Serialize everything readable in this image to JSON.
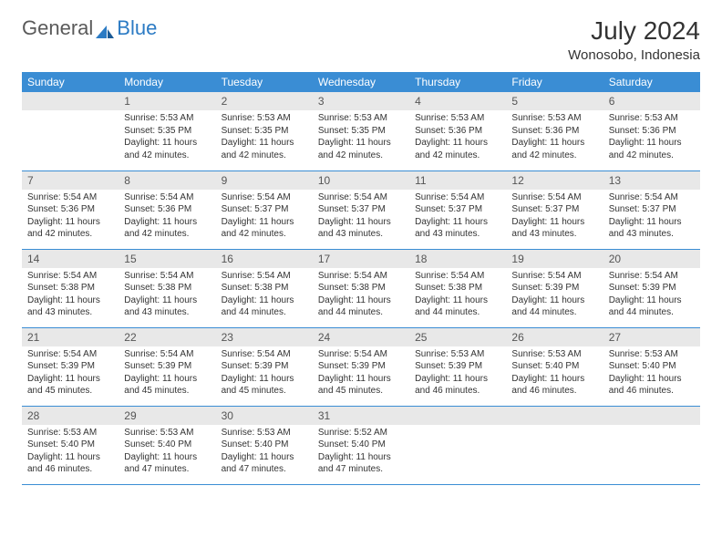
{
  "brand": {
    "part1": "General",
    "part2": "Blue"
  },
  "title": "July 2024",
  "location": "Wonosobo, Indonesia",
  "colors": {
    "header_bg": "#3a8dd4",
    "header_text": "#ffffff",
    "daynum_bg": "#e8e8e8",
    "row_divider": "#3a8dd4",
    "brand_accent": "#2c7bc4"
  },
  "weekdays": [
    "Sunday",
    "Monday",
    "Tuesday",
    "Wednesday",
    "Thursday",
    "Friday",
    "Saturday"
  ],
  "weeks": [
    [
      {
        "n": "",
        "sunrise": "",
        "sunset": "",
        "daylight": ""
      },
      {
        "n": "1",
        "sunrise": "Sunrise: 5:53 AM",
        "sunset": "Sunset: 5:35 PM",
        "daylight": "Daylight: 11 hours and 42 minutes."
      },
      {
        "n": "2",
        "sunrise": "Sunrise: 5:53 AM",
        "sunset": "Sunset: 5:35 PM",
        "daylight": "Daylight: 11 hours and 42 minutes."
      },
      {
        "n": "3",
        "sunrise": "Sunrise: 5:53 AM",
        "sunset": "Sunset: 5:35 PM",
        "daylight": "Daylight: 11 hours and 42 minutes."
      },
      {
        "n": "4",
        "sunrise": "Sunrise: 5:53 AM",
        "sunset": "Sunset: 5:36 PM",
        "daylight": "Daylight: 11 hours and 42 minutes."
      },
      {
        "n": "5",
        "sunrise": "Sunrise: 5:53 AM",
        "sunset": "Sunset: 5:36 PM",
        "daylight": "Daylight: 11 hours and 42 minutes."
      },
      {
        "n": "6",
        "sunrise": "Sunrise: 5:53 AM",
        "sunset": "Sunset: 5:36 PM",
        "daylight": "Daylight: 11 hours and 42 minutes."
      }
    ],
    [
      {
        "n": "7",
        "sunrise": "Sunrise: 5:54 AM",
        "sunset": "Sunset: 5:36 PM",
        "daylight": "Daylight: 11 hours and 42 minutes."
      },
      {
        "n": "8",
        "sunrise": "Sunrise: 5:54 AM",
        "sunset": "Sunset: 5:36 PM",
        "daylight": "Daylight: 11 hours and 42 minutes."
      },
      {
        "n": "9",
        "sunrise": "Sunrise: 5:54 AM",
        "sunset": "Sunset: 5:37 PM",
        "daylight": "Daylight: 11 hours and 42 minutes."
      },
      {
        "n": "10",
        "sunrise": "Sunrise: 5:54 AM",
        "sunset": "Sunset: 5:37 PM",
        "daylight": "Daylight: 11 hours and 43 minutes."
      },
      {
        "n": "11",
        "sunrise": "Sunrise: 5:54 AM",
        "sunset": "Sunset: 5:37 PM",
        "daylight": "Daylight: 11 hours and 43 minutes."
      },
      {
        "n": "12",
        "sunrise": "Sunrise: 5:54 AM",
        "sunset": "Sunset: 5:37 PM",
        "daylight": "Daylight: 11 hours and 43 minutes."
      },
      {
        "n": "13",
        "sunrise": "Sunrise: 5:54 AM",
        "sunset": "Sunset: 5:37 PM",
        "daylight": "Daylight: 11 hours and 43 minutes."
      }
    ],
    [
      {
        "n": "14",
        "sunrise": "Sunrise: 5:54 AM",
        "sunset": "Sunset: 5:38 PM",
        "daylight": "Daylight: 11 hours and 43 minutes."
      },
      {
        "n": "15",
        "sunrise": "Sunrise: 5:54 AM",
        "sunset": "Sunset: 5:38 PM",
        "daylight": "Daylight: 11 hours and 43 minutes."
      },
      {
        "n": "16",
        "sunrise": "Sunrise: 5:54 AM",
        "sunset": "Sunset: 5:38 PM",
        "daylight": "Daylight: 11 hours and 44 minutes."
      },
      {
        "n": "17",
        "sunrise": "Sunrise: 5:54 AM",
        "sunset": "Sunset: 5:38 PM",
        "daylight": "Daylight: 11 hours and 44 minutes."
      },
      {
        "n": "18",
        "sunrise": "Sunrise: 5:54 AM",
        "sunset": "Sunset: 5:38 PM",
        "daylight": "Daylight: 11 hours and 44 minutes."
      },
      {
        "n": "19",
        "sunrise": "Sunrise: 5:54 AM",
        "sunset": "Sunset: 5:39 PM",
        "daylight": "Daylight: 11 hours and 44 minutes."
      },
      {
        "n": "20",
        "sunrise": "Sunrise: 5:54 AM",
        "sunset": "Sunset: 5:39 PM",
        "daylight": "Daylight: 11 hours and 44 minutes."
      }
    ],
    [
      {
        "n": "21",
        "sunrise": "Sunrise: 5:54 AM",
        "sunset": "Sunset: 5:39 PM",
        "daylight": "Daylight: 11 hours and 45 minutes."
      },
      {
        "n": "22",
        "sunrise": "Sunrise: 5:54 AM",
        "sunset": "Sunset: 5:39 PM",
        "daylight": "Daylight: 11 hours and 45 minutes."
      },
      {
        "n": "23",
        "sunrise": "Sunrise: 5:54 AM",
        "sunset": "Sunset: 5:39 PM",
        "daylight": "Daylight: 11 hours and 45 minutes."
      },
      {
        "n": "24",
        "sunrise": "Sunrise: 5:54 AM",
        "sunset": "Sunset: 5:39 PM",
        "daylight": "Daylight: 11 hours and 45 minutes."
      },
      {
        "n": "25",
        "sunrise": "Sunrise: 5:53 AM",
        "sunset": "Sunset: 5:39 PM",
        "daylight": "Daylight: 11 hours and 46 minutes."
      },
      {
        "n": "26",
        "sunrise": "Sunrise: 5:53 AM",
        "sunset": "Sunset: 5:40 PM",
        "daylight": "Daylight: 11 hours and 46 minutes."
      },
      {
        "n": "27",
        "sunrise": "Sunrise: 5:53 AM",
        "sunset": "Sunset: 5:40 PM",
        "daylight": "Daylight: 11 hours and 46 minutes."
      }
    ],
    [
      {
        "n": "28",
        "sunrise": "Sunrise: 5:53 AM",
        "sunset": "Sunset: 5:40 PM",
        "daylight": "Daylight: 11 hours and 46 minutes."
      },
      {
        "n": "29",
        "sunrise": "Sunrise: 5:53 AM",
        "sunset": "Sunset: 5:40 PM",
        "daylight": "Daylight: 11 hours and 47 minutes."
      },
      {
        "n": "30",
        "sunrise": "Sunrise: 5:53 AM",
        "sunset": "Sunset: 5:40 PM",
        "daylight": "Daylight: 11 hours and 47 minutes."
      },
      {
        "n": "31",
        "sunrise": "Sunrise: 5:52 AM",
        "sunset": "Sunset: 5:40 PM",
        "daylight": "Daylight: 11 hours and 47 minutes."
      },
      {
        "n": "",
        "sunrise": "",
        "sunset": "",
        "daylight": ""
      },
      {
        "n": "",
        "sunrise": "",
        "sunset": "",
        "daylight": ""
      },
      {
        "n": "",
        "sunrise": "",
        "sunset": "",
        "daylight": ""
      }
    ]
  ]
}
